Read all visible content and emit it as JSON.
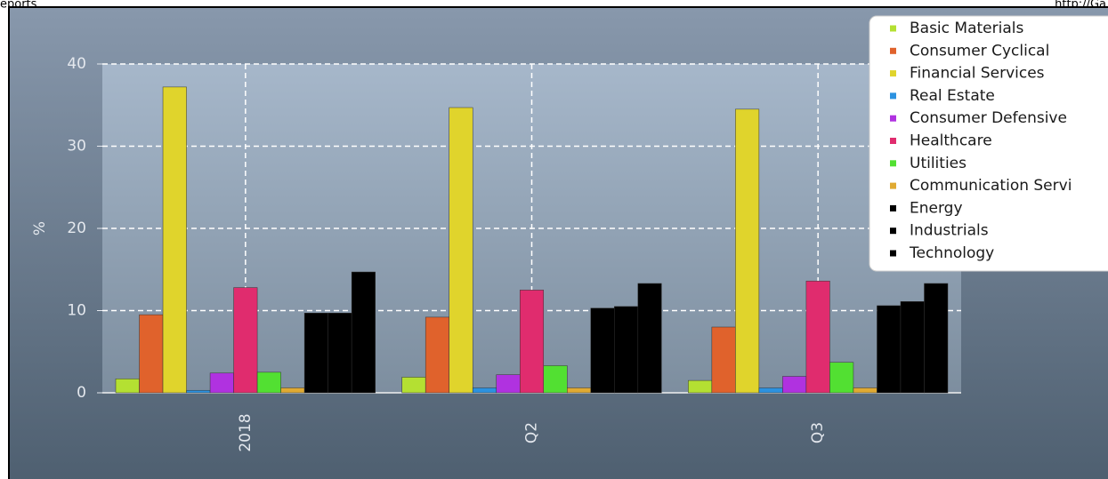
{
  "header": {
    "left": "eports",
    "right": "http://Ga"
  },
  "chart_data": {
    "type": "bar",
    "ylabel": "%",
    "categories": [
      "2018",
      "Q2",
      "Q3"
    ],
    "series": [
      {
        "name": "Basic Materials",
        "color": "#b4e032",
        "values": [
          1.7,
          1.9,
          1.5
        ]
      },
      {
        "name": "Consumer Cyclical",
        "color": "#e0622c",
        "values": [
          9.5,
          9.2,
          8.0
        ]
      },
      {
        "name": "Financial Services",
        "color": "#e0d42c",
        "values": [
          37.2,
          34.7,
          34.5
        ]
      },
      {
        "name": "Real Estate",
        "color": "#2c92e0",
        "values": [
          0.3,
          0.6,
          0.6
        ]
      },
      {
        "name": "Consumer Defensive",
        "color": "#b032e0",
        "values": [
          2.4,
          2.2,
          2.0
        ]
      },
      {
        "name": "Healthcare",
        "color": "#e02c6e",
        "values": [
          12.8,
          12.5,
          13.6
        ]
      },
      {
        "name": "Utilities",
        "color": "#52e032",
        "values": [
          2.5,
          3.3,
          3.7
        ]
      },
      {
        "name": "Communication Servi",
        "color": "#e0aa32",
        "values": [
          0.6,
          0.6,
          0.6
        ]
      },
      {
        "name": "Energy",
        "color": "#000000",
        "values": [
          9.7,
          10.3,
          10.6
        ]
      },
      {
        "name": "Industrials",
        "color": "#000000",
        "values": [
          9.7,
          10.5,
          11.1
        ]
      },
      {
        "name": "Technology",
        "color": "#000000",
        "values": [
          14.7,
          13.3,
          13.3
        ]
      }
    ],
    "ylim": [
      0,
      40
    ],
    "yticks": [
      0,
      10,
      20,
      30,
      40
    ],
    "grid": true,
    "legend": "upper right"
  }
}
